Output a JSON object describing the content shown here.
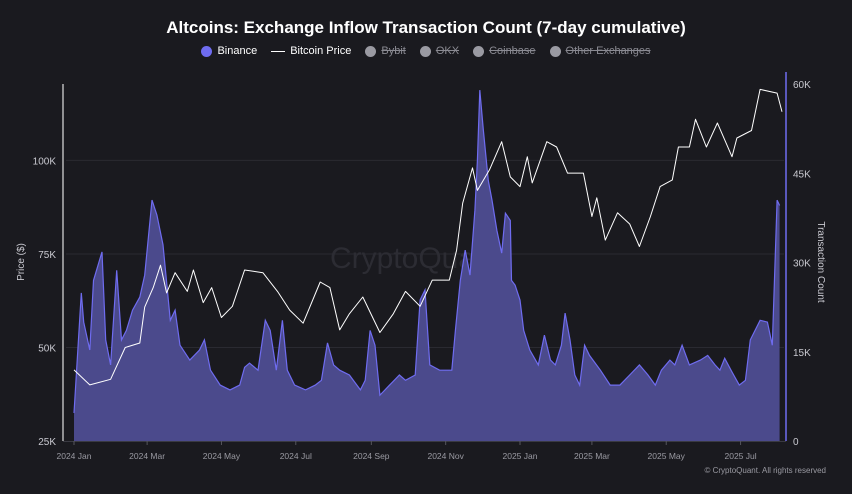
{
  "chart_data": {
    "type": "area",
    "title": "Altcoins: Exchange Inflow Transaction Count (7-day cumulative)",
    "legend": [
      {
        "name": "Binance",
        "color": "#6f6cf0",
        "active": true,
        "marker": "dot"
      },
      {
        "name": "Bitcoin Price",
        "color": "#ffffff",
        "active": true,
        "marker": "line"
      },
      {
        "name": "Bybit",
        "color": "#9a9aa2",
        "active": false,
        "marker": "dot"
      },
      {
        "name": "OKX",
        "color": "#9a9aa2",
        "active": false,
        "marker": "dot"
      },
      {
        "name": "Coinbase",
        "color": "#9a9aa2",
        "active": false,
        "marker": "dot"
      },
      {
        "name": "Other Exchanges",
        "color": "#9a9aa2",
        "active": false,
        "marker": "dot"
      }
    ],
    "legend_placement": "top-center",
    "y_left": {
      "label": "Price ($)",
      "ticks": [
        "25K",
        "50K",
        "75K",
        "100K"
      ],
      "tick_values": [
        25000,
        50000,
        75000,
        100000
      ],
      "range": [
        25000,
        121500
      ]
    },
    "y_right": {
      "label": "Transaction Count",
      "ticks": [
        "0",
        "15K",
        "30K",
        "45K",
        "60K"
      ],
      "tick_values": [
        0,
        15000,
        30000,
        45000,
        60000
      ],
      "range": [
        0,
        60700
      ]
    },
    "x": {
      "ticks": [
        "2024 Jan",
        "2024 Mar",
        "2024 May",
        "2024 Jul",
        "2024 Sep",
        "2024 Nov",
        "2025 Jan",
        "2025 Mar",
        "2025 May",
        "2025 Jul"
      ],
      "tick_dates": [
        "2024-01-01",
        "2024-03-01",
        "2024-05-01",
        "2024-07-01",
        "2024-09-01",
        "2024-11-01",
        "2025-01-01",
        "2025-03-01",
        "2025-05-01",
        "2025-07-01"
      ],
      "range": [
        "2024-01-01",
        "2025-08-04"
      ]
    },
    "grid": true,
    "watermark": "CryptoQuant",
    "series": [
      {
        "name": "Binance",
        "axis": "right",
        "type": "area",
        "color": "#6f6cf0",
        "fill": "#4b4a8c",
        "points": [
          [
            "2024-01-01",
            4700
          ],
          [
            "2024-01-07",
            24900
          ],
          [
            "2024-01-09",
            20000
          ],
          [
            "2024-01-14",
            15300
          ],
          [
            "2024-01-17",
            27000
          ],
          [
            "2024-01-24",
            31800
          ],
          [
            "2024-01-27",
            17000
          ],
          [
            "2024-01-31",
            12800
          ],
          [
            "2024-02-05",
            28700
          ],
          [
            "2024-02-09",
            17000
          ],
          [
            "2024-02-13",
            18600
          ],
          [
            "2024-02-18",
            22000
          ],
          [
            "2024-02-24",
            24200
          ],
          [
            "2024-02-28",
            27900
          ],
          [
            "2024-03-05",
            40500
          ],
          [
            "2024-03-09",
            38000
          ],
          [
            "2024-03-14",
            33000
          ],
          [
            "2024-03-20",
            20300
          ],
          [
            "2024-03-24",
            22000
          ],
          [
            "2024-03-28",
            16100
          ],
          [
            "2024-04-05",
            13600
          ],
          [
            "2024-04-13",
            15300
          ],
          [
            "2024-04-17",
            17000
          ],
          [
            "2024-04-22",
            11900
          ],
          [
            "2024-04-30",
            9400
          ],
          [
            "2024-05-08",
            8600
          ],
          [
            "2024-05-16",
            9400
          ],
          [
            "2024-05-20",
            12400
          ],
          [
            "2024-05-24",
            13100
          ],
          [
            "2024-05-31",
            11900
          ],
          [
            "2024-06-06",
            20300
          ],
          [
            "2024-06-10",
            18600
          ],
          [
            "2024-06-15",
            11900
          ],
          [
            "2024-06-20",
            20300
          ],
          [
            "2024-06-24",
            11900
          ],
          [
            "2024-06-30",
            9400
          ],
          [
            "2024-07-09",
            8600
          ],
          [
            "2024-07-17",
            9400
          ],
          [
            "2024-07-22",
            10200
          ],
          [
            "2024-07-27",
            16500
          ],
          [
            "2024-08-01",
            12800
          ],
          [
            "2024-08-06",
            11900
          ],
          [
            "2024-08-14",
            11100
          ],
          [
            "2024-08-23",
            8600
          ],
          [
            "2024-08-27",
            10200
          ],
          [
            "2024-08-31",
            18600
          ],
          [
            "2024-09-04",
            16100
          ],
          [
            "2024-09-08",
            7700
          ],
          [
            "2024-09-16",
            9400
          ],
          [
            "2024-09-24",
            11100
          ],
          [
            "2024-09-29",
            10200
          ],
          [
            "2024-10-07",
            11100
          ],
          [
            "2024-10-11",
            23700
          ],
          [
            "2024-10-15",
            25400
          ],
          [
            "2024-10-19",
            12800
          ],
          [
            "2024-10-27",
            11900
          ],
          [
            "2024-11-06",
            11900
          ],
          [
            "2024-11-09",
            18600
          ],
          [
            "2024-11-13",
            27000
          ],
          [
            "2024-11-17",
            32100
          ],
          [
            "2024-11-21",
            27900
          ],
          [
            "2024-11-25",
            38800
          ],
          [
            "2024-11-27",
            47200
          ],
          [
            "2024-11-29",
            59000
          ],
          [
            "2024-12-02",
            52200
          ],
          [
            "2024-12-06",
            43800
          ],
          [
            "2024-12-09",
            40500
          ],
          [
            "2024-12-13",
            35400
          ],
          [
            "2024-12-17",
            31600
          ],
          [
            "2024-12-20",
            38300
          ],
          [
            "2024-12-24",
            37100
          ],
          [
            "2024-12-25",
            27000
          ],
          [
            "2024-12-28",
            26200
          ],
          [
            "2025-01-01",
            23700
          ],
          [
            "2025-01-04",
            18600
          ],
          [
            "2025-01-09",
            15300
          ],
          [
            "2025-01-16",
            12800
          ],
          [
            "2025-01-21",
            17800
          ],
          [
            "2025-01-26",
            13600
          ],
          [
            "2025-01-30",
            12800
          ],
          [
            "2025-02-04",
            16100
          ],
          [
            "2025-02-07",
            21500
          ],
          [
            "2025-02-11",
            17000
          ],
          [
            "2025-02-15",
            11100
          ],
          [
            "2025-02-19",
            9400
          ],
          [
            "2025-02-23",
            16100
          ],
          [
            "2025-02-27",
            14400
          ],
          [
            "2025-03-08",
            11900
          ],
          [
            "2025-03-16",
            9400
          ],
          [
            "2025-03-24",
            9400
          ],
          [
            "2025-04-01",
            11100
          ],
          [
            "2025-04-09",
            12800
          ],
          [
            "2025-04-16",
            11100
          ],
          [
            "2025-04-22",
            9400
          ],
          [
            "2025-04-27",
            11900
          ],
          [
            "2025-05-04",
            13600
          ],
          [
            "2025-05-08",
            12800
          ],
          [
            "2025-05-14",
            16100
          ],
          [
            "2025-05-20",
            12800
          ],
          [
            "2025-05-29",
            13600
          ],
          [
            "2025-06-04",
            14400
          ],
          [
            "2025-06-10",
            12800
          ],
          [
            "2025-06-14",
            11900
          ],
          [
            "2025-06-18",
            13900
          ],
          [
            "2025-06-24",
            11600
          ],
          [
            "2025-06-30",
            9400
          ],
          [
            "2025-07-05",
            10200
          ],
          [
            "2025-07-09",
            17000
          ],
          [
            "2025-07-17",
            20300
          ],
          [
            "2025-07-23",
            20000
          ],
          [
            "2025-07-27",
            16100
          ],
          [
            "2025-07-31",
            40500
          ],
          [
            "2025-08-02",
            39600
          ]
        ]
      },
      {
        "name": "Bitcoin Price",
        "axis": "left",
        "type": "line",
        "color": "#ffffff",
        "points": [
          [
            "2024-01-01",
            44000
          ],
          [
            "2024-01-14",
            40000
          ],
          [
            "2024-01-31",
            41500
          ],
          [
            "2024-02-12",
            50000
          ],
          [
            "2024-02-24",
            51200
          ],
          [
            "2024-02-28",
            60800
          ],
          [
            "2024-03-06",
            66000
          ],
          [
            "2024-03-12",
            72000
          ],
          [
            "2024-03-17",
            64600
          ],
          [
            "2024-03-24",
            70000
          ],
          [
            "2024-04-03",
            65000
          ],
          [
            "2024-04-08",
            70700
          ],
          [
            "2024-04-16",
            62000
          ],
          [
            "2024-04-23",
            66000
          ],
          [
            "2024-05-01",
            58000
          ],
          [
            "2024-05-10",
            61000
          ],
          [
            "2024-05-20",
            70700
          ],
          [
            "2024-06-04",
            70000
          ],
          [
            "2024-06-16",
            65000
          ],
          [
            "2024-06-26",
            60000
          ],
          [
            "2024-07-07",
            56500
          ],
          [
            "2024-07-21",
            67500
          ],
          [
            "2024-07-29",
            66000
          ],
          [
            "2024-08-06",
            54700
          ],
          [
            "2024-08-14",
            59000
          ],
          [
            "2024-08-25",
            63500
          ],
          [
            "2024-09-08",
            54000
          ],
          [
            "2024-09-19",
            59000
          ],
          [
            "2024-09-29",
            65000
          ],
          [
            "2024-10-11",
            61000
          ],
          [
            "2024-10-21",
            68000
          ],
          [
            "2024-11-04",
            68000
          ],
          [
            "2024-11-10",
            76000
          ],
          [
            "2024-11-15",
            88600
          ],
          [
            "2024-11-23",
            98000
          ],
          [
            "2024-11-27",
            92000
          ],
          [
            "2024-12-07",
            97500
          ],
          [
            "2024-12-17",
            105000
          ],
          [
            "2024-12-24",
            95600
          ],
          [
            "2025-01-01",
            93000
          ],
          [
            "2025-01-07",
            101000
          ],
          [
            "2025-01-11",
            94000
          ],
          [
            "2025-01-23",
            105000
          ],
          [
            "2025-01-31",
            103600
          ],
          [
            "2025-02-09",
            96600
          ],
          [
            "2025-02-22",
            96600
          ],
          [
            "2025-03-01",
            85000
          ],
          [
            "2025-03-05",
            90000
          ],
          [
            "2025-03-12",
            78700
          ],
          [
            "2025-03-22",
            86000
          ],
          [
            "2025-04-01",
            83000
          ],
          [
            "2025-04-09",
            77000
          ],
          [
            "2025-04-18",
            85000
          ],
          [
            "2025-04-26",
            93000
          ],
          [
            "2025-05-06",
            94800
          ],
          [
            "2025-05-11",
            103600
          ],
          [
            "2025-05-20",
            103600
          ],
          [
            "2025-05-25",
            111000
          ],
          [
            "2025-06-03",
            103600
          ],
          [
            "2025-06-12",
            110000
          ],
          [
            "2025-06-24",
            101000
          ],
          [
            "2025-06-28",
            106000
          ],
          [
            "2025-07-10",
            108000
          ],
          [
            "2025-07-17",
            119000
          ],
          [
            "2025-07-31",
            118000
          ],
          [
            "2025-08-04",
            113000
          ]
        ]
      }
    ]
  },
  "footer": {
    "credit": "© CryptoQuant. All rights reserved"
  }
}
